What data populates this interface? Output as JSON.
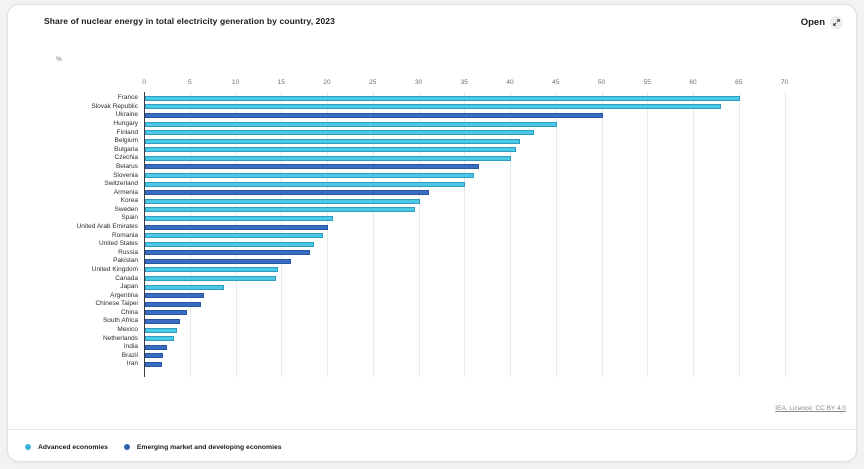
{
  "header": {
    "open_label": "Open"
  },
  "footer": {
    "licence_text": "IEA. Licence: CC BY 4.0"
  },
  "chart_data": {
    "type": "bar",
    "orientation": "horizontal",
    "title": "Share of nuclear energy in total electricity generation by country, 2023",
    "unit_label": "%",
    "xlim": [
      0,
      70
    ],
    "x_ticks": [
      0,
      5,
      10,
      15,
      20,
      25,
      30,
      35,
      40,
      45,
      50,
      55,
      60,
      65,
      70
    ],
    "grid": true,
    "legend_position": "bottom",
    "groups": {
      "advanced": {
        "label": "Advanced economies",
        "fill": "#4cc7e6",
        "stroke": "#2e9dc2",
        "dot": "#3ab4d8"
      },
      "emerging": {
        "label": "Emerging market and developing economies",
        "fill": "#3a6cc1",
        "stroke": "#2a56a4",
        "dot": "#2f63ae"
      }
    },
    "bars": [
      {
        "country": "France",
        "value": 65,
        "group": "advanced"
      },
      {
        "country": "Slovak Republic",
        "value": 63,
        "group": "advanced"
      },
      {
        "country": "Ukraine",
        "value": 50,
        "group": "emerging"
      },
      {
        "country": "Hungary",
        "value": 45,
        "group": "advanced"
      },
      {
        "country": "Finland",
        "value": 42.5,
        "group": "advanced"
      },
      {
        "country": "Belgium",
        "value": 41,
        "group": "advanced"
      },
      {
        "country": "Bulgaria",
        "value": 40.5,
        "group": "advanced"
      },
      {
        "country": "Czechia",
        "value": 40,
        "group": "advanced"
      },
      {
        "country": "Belarus",
        "value": 36.5,
        "group": "emerging"
      },
      {
        "country": "Slovenia",
        "value": 36,
        "group": "advanced"
      },
      {
        "country": "Switzerland",
        "value": 35,
        "group": "advanced"
      },
      {
        "country": "Armenia",
        "value": 31,
        "group": "emerging"
      },
      {
        "country": "Korea",
        "value": 30,
        "group": "advanced"
      },
      {
        "country": "Sweden",
        "value": 29.5,
        "group": "advanced"
      },
      {
        "country": "Spain",
        "value": 20.5,
        "group": "advanced"
      },
      {
        "country": "United Arab Emirates",
        "value": 20,
        "group": "emerging"
      },
      {
        "country": "Romania",
        "value": 19.5,
        "group": "advanced"
      },
      {
        "country": "United States",
        "value": 18.5,
        "group": "advanced"
      },
      {
        "country": "Russia",
        "value": 18,
        "group": "emerging"
      },
      {
        "country": "Pakistan",
        "value": 16,
        "group": "emerging"
      },
      {
        "country": "United Kingdom",
        "value": 14.5,
        "group": "advanced"
      },
      {
        "country": "Canada",
        "value": 14.3,
        "group": "advanced"
      },
      {
        "country": "Japan",
        "value": 8.6,
        "group": "advanced"
      },
      {
        "country": "Argentina",
        "value": 6.4,
        "group": "emerging"
      },
      {
        "country": "Chinese Taipei",
        "value": 6.1,
        "group": "emerging"
      },
      {
        "country": "China",
        "value": 4.6,
        "group": "emerging"
      },
      {
        "country": "South Africa",
        "value": 3.8,
        "group": "emerging"
      },
      {
        "country": "Mexico",
        "value": 3.5,
        "group": "advanced"
      },
      {
        "country": "Netherlands",
        "value": 3.2,
        "group": "advanced"
      },
      {
        "country": "India",
        "value": 2.4,
        "group": "emerging"
      },
      {
        "country": "Brazil",
        "value": 2,
        "group": "emerging"
      },
      {
        "country": "Iran",
        "value": 1.9,
        "group": "emerging"
      }
    ]
  }
}
